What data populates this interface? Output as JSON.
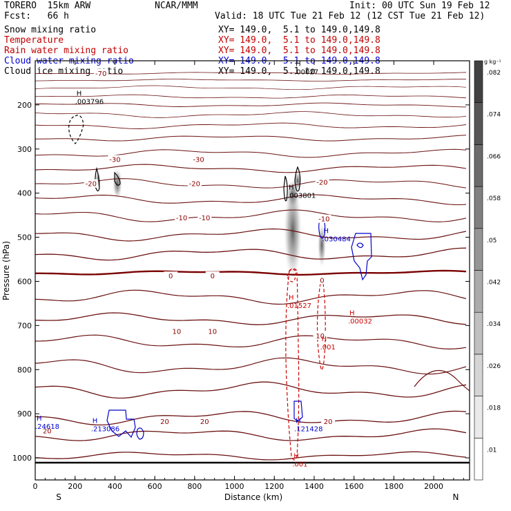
{
  "header": {
    "model": "TORERO  15km ARW",
    "center": "NCAR/MMM",
    "init": "Init: 00 UTC Sun 19 Feb 12",
    "fcst": "Fcst:   66 h",
    "valid": "Valid: 18 UTC Tue 21 Feb 12 (12 CST Tue 21 Feb 12)"
  },
  "legend": [
    {
      "name": "Snow mixing ratio",
      "xy": "XY= 149.0,  5.1 to 149.0,149.8",
      "color": "#000000"
    },
    {
      "name": "Temperature",
      "xy": "XY= 149.0,  5.1 to 149.0,149.8",
      "color": "#c00000"
    },
    {
      "name": "Rain water mixing ratio",
      "xy": "XY= 149.0,  5.1 to 149.0,149.8",
      "color": "#c00000"
    },
    {
      "name": "Cloud water mixing ratio",
      "xy": "XY= 149.0,  5.1 to 149.0,149.8",
      "color": "#0000cc"
    },
    {
      "name": "Cloud ice mixing ratio",
      "xy": "XY= 149.0,  5.1 to 149.0,149.8",
      "color": "#000000"
    }
  ],
  "colorbar": {
    "unit": "g kg⁻¹",
    "ticks": [
      ".01",
      ".018",
      ".026",
      ".034",
      ".042",
      ".05",
      ".058",
      ".066",
      ".074",
      ".082"
    ]
  },
  "chart_data": {
    "type": "cross-section",
    "xlabel": "Distance (km)",
    "ylabel": "Pressure (hPa)",
    "xlim": [
      0,
      2180
    ],
    "ylim": [
      1050,
      100
    ],
    "x_ticks": [
      0,
      200,
      400,
      600,
      800,
      1000,
      1200,
      1400,
      1600,
      1800,
      2000
    ],
    "y_ticks": [
      200,
      300,
      400,
      500,
      600,
      700,
      800,
      900,
      1000
    ],
    "left_end": "S",
    "right_end": "N",
    "temperature_labels": [
      {
        "text": "-70",
        "x": 330,
        "p": 128
      },
      {
        "text": "-30",
        "x": 400,
        "p": 323
      },
      {
        "text": "-30",
        "x": 820,
        "p": 323
      },
      {
        "text": "-20",
        "x": 280,
        "p": 378
      },
      {
        "text": "-20",
        "x": 800,
        "p": 378
      },
      {
        "text": "-20",
        "x": 1440,
        "p": 375
      },
      {
        "text": "-10",
        "x": 735,
        "p": 455
      },
      {
        "text": "-10",
        "x": 850,
        "p": 455
      },
      {
        "text": "-10",
        "x": 1450,
        "p": 458
      },
      {
        "text": "0",
        "x": 680,
        "p": 587
      },
      {
        "text": "0",
        "x": 890,
        "p": 587
      },
      {
        "text": "0",
        "x": 1440,
        "p": 597
      },
      {
        "text": "10",
        "x": 710,
        "p": 713
      },
      {
        "text": "10",
        "x": 890,
        "p": 713
      },
      {
        "text": "10",
        "x": 1430,
        "p": 723
      },
      {
        "text": "20",
        "x": 60,
        "p": 938
      },
      {
        "text": "20",
        "x": 650,
        "p": 917
      },
      {
        "text": "20",
        "x": 850,
        "p": 917
      },
      {
        "text": "20",
        "x": 1470,
        "p": 917
      }
    ],
    "maxima": [
      {
        "field": "Cloud ice mixing ratio",
        "x": 200,
        "p": 185,
        "text": ".003796"
      },
      {
        "field": "Cloud ice mixing ratio",
        "x": 1300,
        "p": 118,
        "text": ".00027"
      },
      {
        "field": "Snow mixing ratio",
        "x": 1265,
        "p": 398,
        "text": ".003801"
      },
      {
        "field": "Cloud water mixing ratio",
        "x": 1440,
        "p": 497,
        "text": ".030484"
      },
      {
        "field": "Rain water mixing ratio",
        "x": 1265,
        "p": 648,
        "text": ".01527"
      },
      {
        "field": "Rain water mixing ratio",
        "x": 1570,
        "p": 683,
        "text": ".00032"
      },
      {
        "field": "Rain water mixing ratio",
        "x": 1430,
        "p": 742,
        "text": ".001"
      },
      {
        "field": "Cloud water mixing ratio",
        "x": 0,
        "p": 922,
        "text": ".24618"
      },
      {
        "field": "Cloud water mixing ratio",
        "x": 280,
        "p": 927,
        "text": ".213086"
      },
      {
        "field": "Cloud water mixing ratio",
        "x": 1300,
        "p": 927,
        "text": ".121428"
      },
      {
        "field": "Rain water mixing ratio",
        "x": 1290,
        "p": 1007,
        "text": ".001"
      }
    ]
  }
}
